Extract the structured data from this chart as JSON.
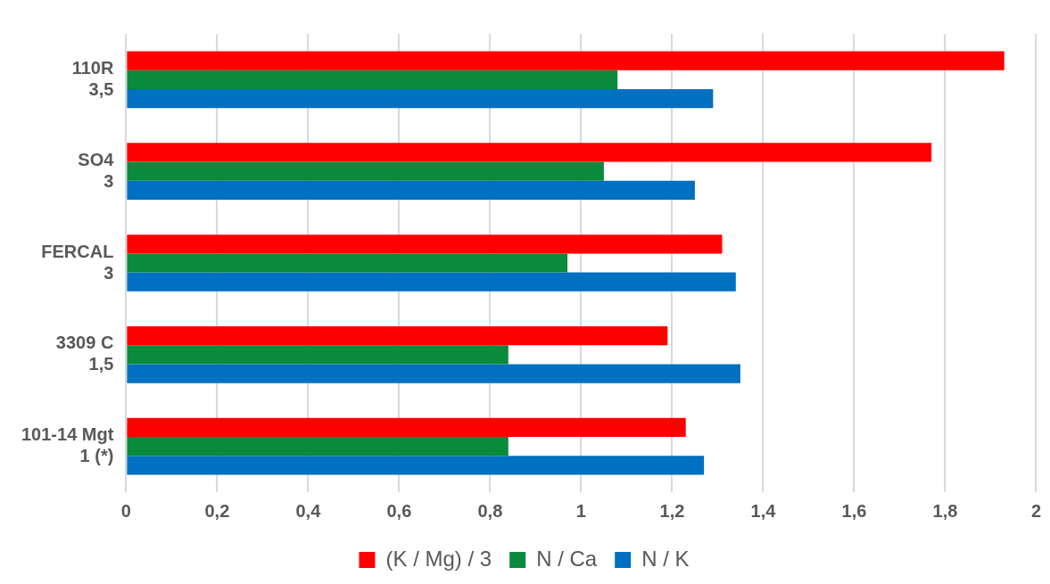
{
  "chart_data": {
    "type": "bar",
    "orientation": "horizontal",
    "categories": [
      "110R\n3,5",
      "SO4\n3",
      "FERCAL\n3",
      "3309 C\n1,5",
      "101-14 Mgt\n1 (*)"
    ],
    "series": [
      {
        "name": "(K / Mg) / 3",
        "color": "#ff0000",
        "values": [
          1.93,
          1.77,
          1.31,
          1.19,
          1.23
        ]
      },
      {
        "name": "N / Ca",
        "color": "#0a8a3c",
        "values": [
          1.08,
          1.05,
          0.97,
          0.84,
          0.84
        ]
      },
      {
        "name": "N / K",
        "color": "#0070c0",
        "values": [
          1.29,
          1.25,
          1.34,
          1.35,
          1.27
        ]
      }
    ],
    "xlim": [
      0,
      2
    ],
    "xticks": [
      0,
      {
        "value": 0.2,
        "label": "0,2"
      },
      {
        "value": 0.4,
        "label": "0,4"
      },
      {
        "value": 0.6,
        "label": "0,6"
      },
      {
        "value": 0.8,
        "label": "0,8"
      },
      1,
      {
        "value": 1.2,
        "label": "1,2"
      },
      {
        "value": 1.4,
        "label": "1,4"
      },
      {
        "value": 1.6,
        "label": "1,6"
      },
      {
        "value": 1.8,
        "label": "1,8"
      },
      2
    ],
    "grid": "x",
    "legend": "bottom"
  }
}
